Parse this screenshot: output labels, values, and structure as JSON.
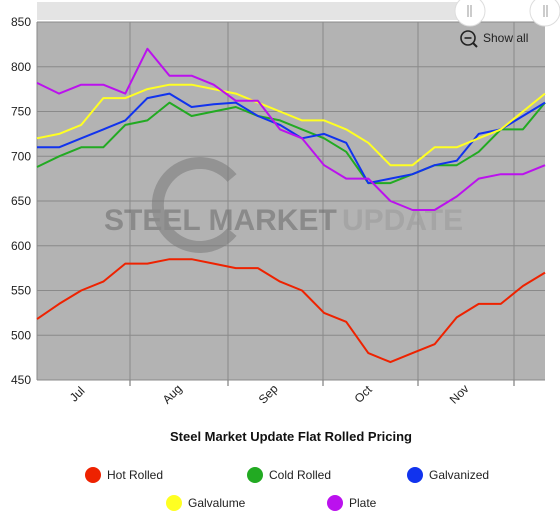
{
  "chart_data": {
    "type": "line",
    "title": "Steel Market Update Flat Rolled Pricing",
    "watermark": {
      "bold": "STEEL MARKET",
      "light": "UPDATE"
    },
    "show_all_label": "Show all",
    "x_tick_labels": [
      "Jul",
      "Aug",
      "Sep",
      "Oct",
      "Nov"
    ],
    "y_ticks": [
      450,
      500,
      550,
      600,
      650,
      700,
      750,
      800,
      850
    ],
    "ylim": [
      450,
      850
    ],
    "grid": true,
    "legend_position": "bottom",
    "series": [
      {
        "name": "Hot Rolled",
        "color": "#ee2200",
        "values": [
          518,
          535,
          550,
          560,
          580,
          580,
          585,
          585,
          580,
          575,
          575,
          560,
          550,
          525,
          515,
          480,
          470,
          480,
          490,
          520,
          535,
          535,
          555,
          570
        ]
      },
      {
        "name": "Cold Rolled",
        "color": "#22aa22",
        "values": [
          688,
          700,
          710,
          710,
          735,
          740,
          760,
          745,
          750,
          755,
          745,
          740,
          730,
          720,
          705,
          670,
          670,
          680,
          690,
          690,
          705,
          730,
          730,
          760
        ]
      },
      {
        "name": "Galvanized",
        "color": "#1133ee",
        "values": [
          710,
          710,
          720,
          730,
          740,
          765,
          770,
          755,
          758,
          760,
          745,
          735,
          720,
          725,
          715,
          670,
          675,
          680,
          690,
          695,
          725,
          730,
          745,
          760
        ]
      },
      {
        "name": "Galvalume",
        "color": "#ffff22",
        "values": [
          720,
          725,
          735,
          765,
          765,
          775,
          780,
          780,
          775,
          770,
          760,
          750,
          740,
          740,
          730,
          715,
          690,
          690,
          710,
          710,
          720,
          730,
          750,
          770
        ]
      },
      {
        "name": "Plate",
        "color": "#bb11ee",
        "values": [
          782,
          770,
          780,
          780,
          770,
          820,
          790,
          790,
          780,
          762,
          762,
          730,
          720,
          690,
          675,
          675,
          650,
          640,
          640,
          655,
          675,
          680,
          680,
          690
        ]
      }
    ]
  }
}
